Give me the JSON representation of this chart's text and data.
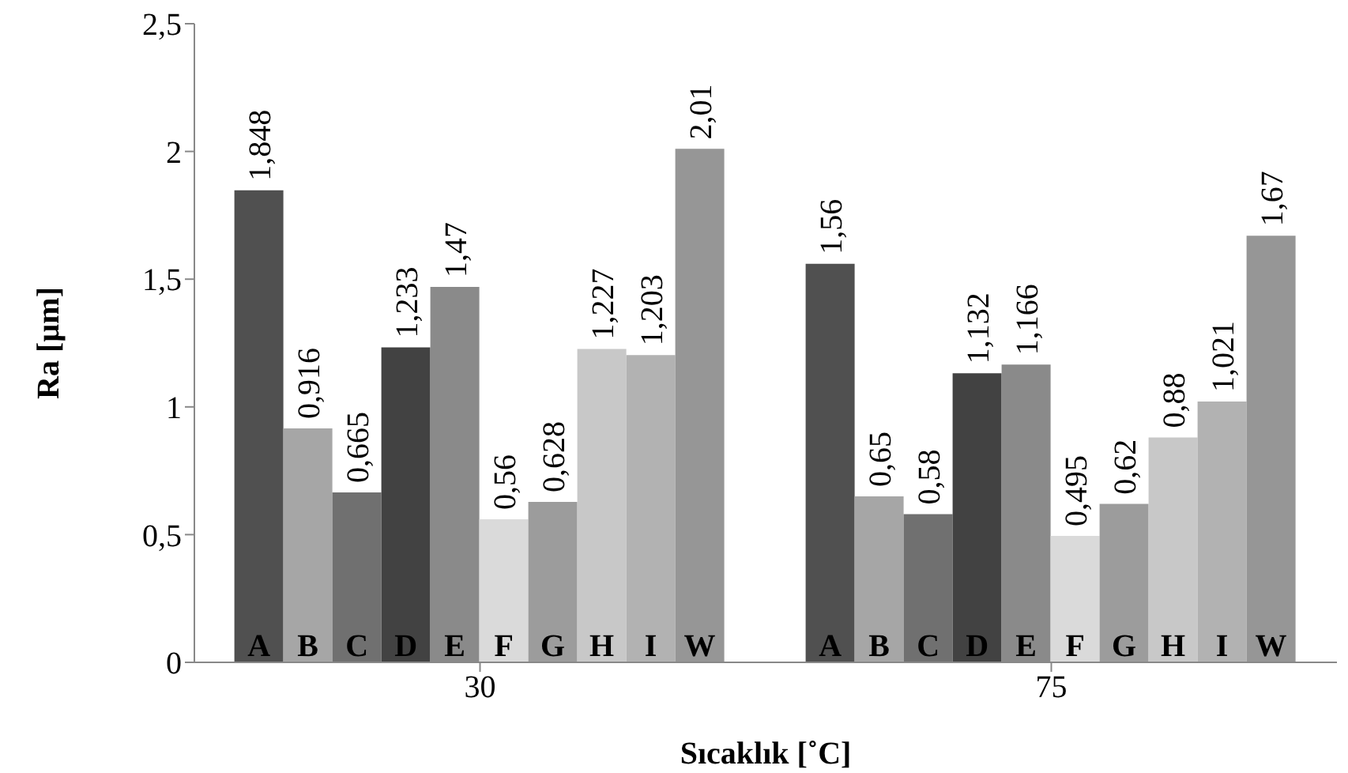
{
  "chart_data": {
    "type": "bar",
    "xlabel": "Sıcaklık [˚C]",
    "ylabel": "Ra [µm]",
    "categories": [
      "30",
      "75"
    ],
    "series": [
      {
        "name": "A",
        "color": "#505050",
        "values": [
          1.848,
          1.56
        ],
        "value_labels": [
          "1,848",
          "1,56"
        ]
      },
      {
        "name": "B",
        "color": "#a6a6a6",
        "values": [
          0.916,
          0.65
        ],
        "value_labels": [
          "0,916",
          "0,65"
        ]
      },
      {
        "name": "C",
        "color": "#707070",
        "values": [
          0.665,
          0.58
        ],
        "value_labels": [
          "0,665",
          "0,58"
        ]
      },
      {
        "name": "D",
        "color": "#424242",
        "values": [
          1.233,
          1.132
        ],
        "value_labels": [
          "1,233",
          "1,132"
        ]
      },
      {
        "name": "E",
        "color": "#8a8a8a",
        "values": [
          1.47,
          1.166
        ],
        "value_labels": [
          "1,47",
          "1,166"
        ]
      },
      {
        "name": "F",
        "color": "#dadada",
        "values": [
          0.56,
          0.495
        ],
        "value_labels": [
          "0,56",
          "0,495"
        ]
      },
      {
        "name": "G",
        "color": "#9c9c9c",
        "values": [
          0.628,
          0.62
        ],
        "value_labels": [
          "0,628",
          "0,62"
        ]
      },
      {
        "name": "H",
        "color": "#c8c8c8",
        "values": [
          1.227,
          0.88
        ],
        "value_labels": [
          "1,227",
          "0,88"
        ]
      },
      {
        "name": "I",
        "color": "#b2b2b2",
        "values": [
          1.203,
          1.021
        ],
        "value_labels": [
          "1,203",
          "1,021"
        ]
      },
      {
        "name": "W",
        "color": "#969696",
        "values": [
          2.01,
          1.67
        ],
        "value_labels": [
          "2,01",
          "1,67"
        ]
      }
    ],
    "ylim": [
      0,
      2.5
    ],
    "yticks": [
      0,
      {
        "value": 0.5,
        "label": "0,5"
      },
      1,
      {
        "value": 1.5,
        "label": "1,5"
      },
      2,
      {
        "value": 2.5,
        "label": "2,5"
      }
    ],
    "grid": false,
    "legend": false
  }
}
